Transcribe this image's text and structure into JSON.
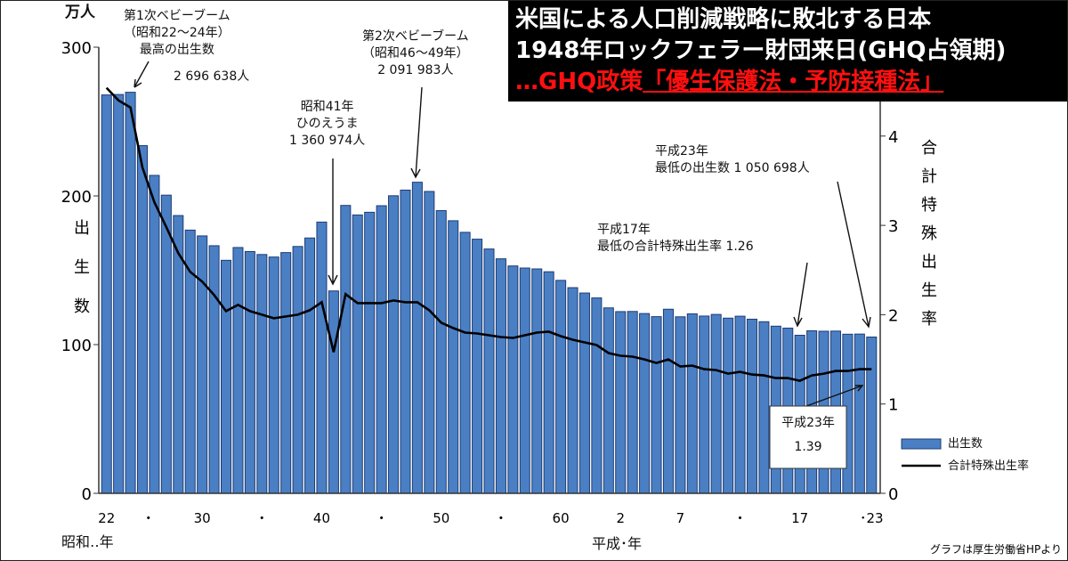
{
  "title": {
    "line1": "米国による人口削減戦略に敗北する日本",
    "line2": "1948年ロックフェラー財団来日(GHQ占領期)",
    "line3_prefix": "…GHQ政策",
    "line3_highlight": "「優生保護法・予防接種法」"
  },
  "source_note": "グラフは厚生労働省HPより",
  "annotations": {
    "boom1": [
      "第1次ベビーブーム",
      "（昭和22～24年）",
      "最高の出生数",
      "2 696 638人"
    ],
    "hinoe": [
      "昭和41年",
      "ひのえうま",
      "1 360 974人"
    ],
    "boom2": [
      "第2次ベビーブーム",
      "（昭和46～49年）",
      "2 091 983人"
    ],
    "h23": [
      "平成23年",
      "最低の出生数 1 050 698人"
    ],
    "h17": [
      "平成17年",
      "最低の合計特殊出生率 1.26"
    ],
    "callout": [
      "平成23年",
      "1.39"
    ]
  },
  "chart_data": {
    "type": "bar+line",
    "title": "",
    "ylabel": "出生数",
    "yunit": "万人",
    "y2label": "合計特殊出生率",
    "ylim": [
      0,
      300
    ],
    "y2lim": [
      0,
      5
    ],
    "yticks": [
      0,
      100,
      200,
      300
    ],
    "y2ticks": [
      0,
      1,
      2,
      3,
      4
    ],
    "xlabel_showa": "昭和‥年",
    "xlabel_heisei": "平成･年",
    "xticks": [
      {
        "label": "22",
        "index": 0
      },
      {
        "label": "・",
        "index": 3.5
      },
      {
        "label": "30",
        "index": 8
      },
      {
        "label": "・",
        "index": 13
      },
      {
        "label": "40",
        "index": 18
      },
      {
        "label": "・",
        "index": 23
      },
      {
        "label": "50",
        "index": 28
      },
      {
        "label": "・",
        "index": 33
      },
      {
        "label": "60",
        "index": 38
      },
      {
        "label": "2",
        "index": 43
      },
      {
        "label": "7",
        "index": 48
      },
      {
        "label": "・",
        "index": 53
      },
      {
        "label": "17",
        "index": 58
      },
      {
        "label": "･23",
        "index": 64
      }
    ],
    "legend": {
      "position": "bottom-right",
      "bar": "出生数",
      "line": "合計特殊出生率"
    },
    "years": [
      1947,
      1948,
      1949,
      1950,
      1951,
      1952,
      1953,
      1954,
      1955,
      1956,
      1957,
      1958,
      1959,
      1960,
      1961,
      1962,
      1963,
      1964,
      1965,
      1966,
      1967,
      1968,
      1969,
      1970,
      1971,
      1972,
      1973,
      1974,
      1975,
      1976,
      1977,
      1978,
      1979,
      1980,
      1981,
      1982,
      1983,
      1984,
      1985,
      1986,
      1987,
      1988,
      1989,
      1990,
      1991,
      1992,
      1993,
      1994,
      1995,
      1996,
      1997,
      1998,
      1999,
      2000,
      2001,
      2002,
      2003,
      2004,
      2005,
      2006,
      2007,
      2008,
      2009,
      2010,
      2011
    ],
    "births": [
      267.9,
      268.2,
      269.7,
      233.8,
      213.8,
      200.5,
      186.8,
      177.0,
      173.1,
      166.5,
      156.7,
      165.3,
      162.6,
      160.6,
      158.9,
      161.9,
      166.0,
      171.7,
      182.4,
      136.1,
      193.6,
      187.2,
      189.0,
      193.4,
      200.1,
      203.9,
      209.2,
      203.0,
      190.1,
      183.3,
      175.5,
      170.9,
      164.3,
      157.7,
      152.9,
      151.5,
      150.9,
      149.0,
      143.2,
      138.3,
      134.7,
      131.4,
      124.7,
      122.2,
      122.3,
      120.9,
      118.8,
      123.8,
      118.7,
      120.7,
      119.2,
      120.3,
      117.8,
      119.1,
      117.1,
      115.4,
      112.4,
      111.1,
      106.3,
      109.3,
      109.0,
      109.1,
      107.0,
      107.1,
      105.1
    ],
    "tfr": [
      4.54,
      4.4,
      4.32,
      3.65,
      3.26,
      2.98,
      2.69,
      2.48,
      2.37,
      2.22,
      2.04,
      2.11,
      2.04,
      2.0,
      1.96,
      1.98,
      2.0,
      2.05,
      2.14,
      1.58,
      2.23,
      2.13,
      2.13,
      2.13,
      2.16,
      2.14,
      2.14,
      2.05,
      1.91,
      1.85,
      1.8,
      1.79,
      1.77,
      1.75,
      1.74,
      1.77,
      1.8,
      1.81,
      1.76,
      1.72,
      1.69,
      1.66,
      1.57,
      1.54,
      1.53,
      1.5,
      1.46,
      1.5,
      1.42,
      1.43,
      1.39,
      1.38,
      1.34,
      1.36,
      1.33,
      1.32,
      1.29,
      1.29,
      1.26,
      1.32,
      1.34,
      1.37,
      1.37,
      1.39,
      1.39
    ],
    "colors": {
      "bar": "#4a7fc4",
      "bar_edge": "#1d3c75",
      "line": "#000000"
    }
  }
}
